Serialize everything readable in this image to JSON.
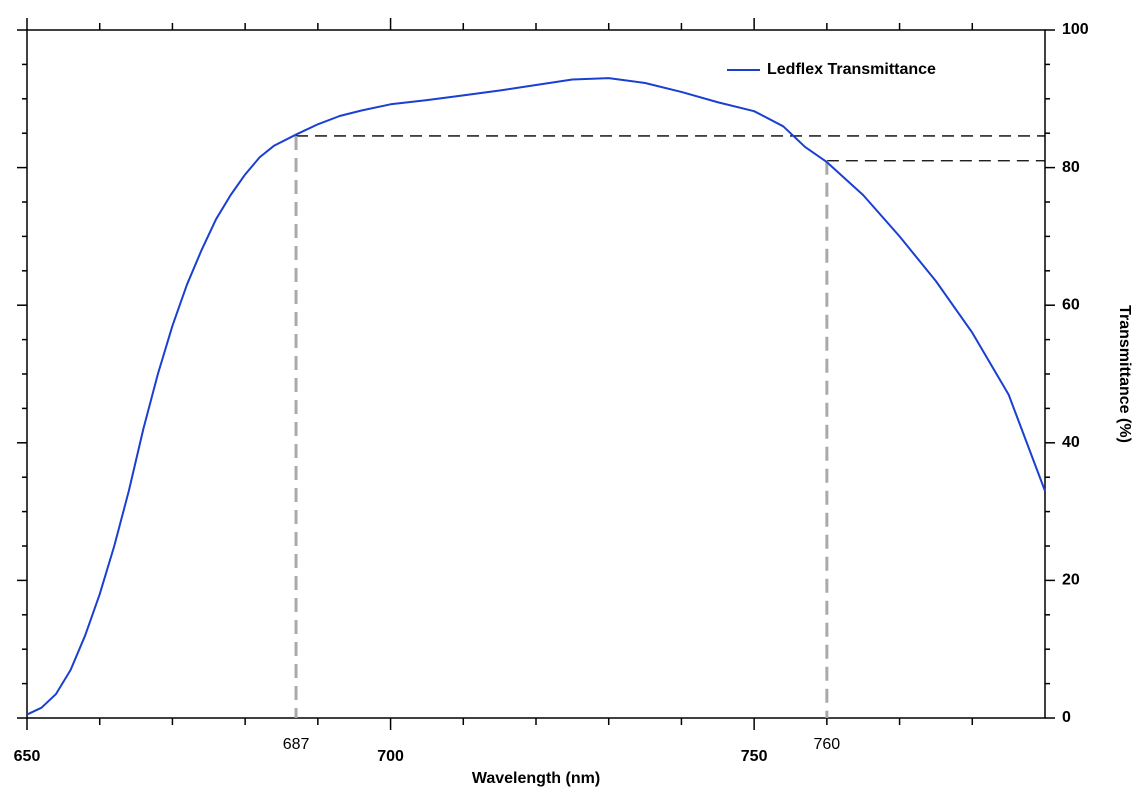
{
  "chart_data": {
    "type": "line",
    "xlabel": "Wavelength (nm)",
    "ylabel": "Transmittance (%)",
    "x": [
      650,
      652,
      654,
      656,
      658,
      660,
      662,
      664,
      666,
      668,
      670,
      672,
      674,
      676,
      678,
      680,
      682,
      684,
      687,
      690,
      693,
      696,
      700,
      705,
      710,
      715,
      720,
      725,
      730,
      735,
      740,
      745,
      750,
      754,
      757,
      760,
      765,
      770,
      775,
      780,
      785,
      790
    ],
    "series": [
      {
        "name": "Ledflex Transmittance",
        "color": "#1a3fd1",
        "values": [
          0.5,
          1.5,
          3.5,
          7,
          12,
          18,
          25,
          33,
          42,
          50,
          57,
          63,
          68,
          72.5,
          76,
          79,
          81.5,
          83.2,
          84.8,
          86.3,
          87.5,
          88.3,
          89.2,
          89.8,
          90.5,
          91.2,
          92,
          92.8,
          93,
          92.3,
          91,
          89.5,
          88.2,
          86,
          83,
          80.8,
          76,
          70,
          63.5,
          56,
          47,
          33
        ]
      }
    ],
    "xlim": [
      650,
      790
    ],
    "xticks": [
      650,
      700,
      750
    ],
    "xminorticks": [
      660,
      670,
      680,
      690,
      710,
      720,
      730,
      740,
      760,
      770,
      780
    ],
    "ylim": [
      0,
      100
    ],
    "yticks": [
      0,
      20,
      40,
      60,
      80,
      100
    ],
    "yminorticks": [
      5,
      10,
      15,
      25,
      30,
      35,
      45,
      50,
      55,
      65,
      70,
      75,
      85,
      90,
      95
    ],
    "markers": [
      {
        "x": 687,
        "y": 84.6
      },
      {
        "x": 760,
        "y": 81
      }
    ],
    "legend": "upper right"
  }
}
